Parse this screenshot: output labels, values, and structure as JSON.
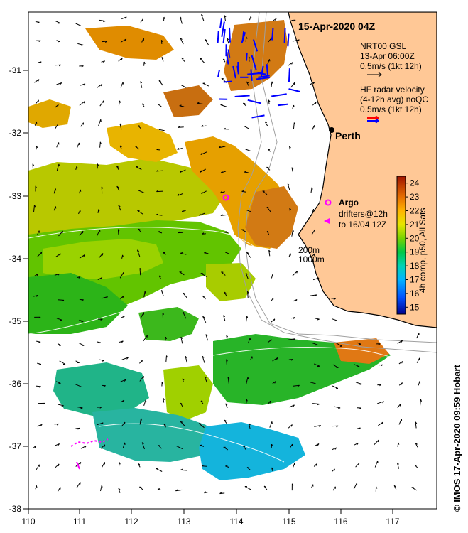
{
  "title": "15-Apr-2020 04Z",
  "model_legend": [
    "NRT00 GSL",
    "13-Apr 06:00Z",
    "0.5m/s (1kt 12h)"
  ],
  "radar_legend": [
    "HF radar velocity",
    "(4-12h avg) noQC",
    "0.5m/s (1kt 12h)"
  ],
  "city_label": "Perth",
  "argo_label": "Argo",
  "drifter_legend": [
    "drifters@12h",
    "to 16/04 12Z"
  ],
  "depth_labels": [
    "200m",
    "1000m"
  ],
  "colorbar_label": "4h comp, p50, All Sats",
  "colorbar_ticks": [
    "15",
    "16",
    "17",
    "18",
    "19",
    "20",
    "21",
    "22",
    "23",
    "24"
  ],
  "x_ticks": [
    "110",
    "111",
    "112",
    "113",
    "114",
    "115",
    "116",
    "117"
  ],
  "y_ticks": [
    "-31",
    "-32",
    "-33",
    "-34",
    "-35",
    "-36",
    "-37",
    "-38"
  ],
  "credit": "© IMOS 17-Apr-2020 09:59 Hobart",
  "colors": {
    "land": "#ffc896",
    "radar": "#0000ff",
    "drifter": "#ff00ff",
    "argo": "#ff00ff",
    "arrow": "#000000"
  },
  "chart_data": {
    "type": "heatmap",
    "x_range": [
      110,
      118
    ],
    "y_range": [
      -38,
      -30.2
    ],
    "colorbar_range": [
      14.5,
      24.5
    ]
  }
}
